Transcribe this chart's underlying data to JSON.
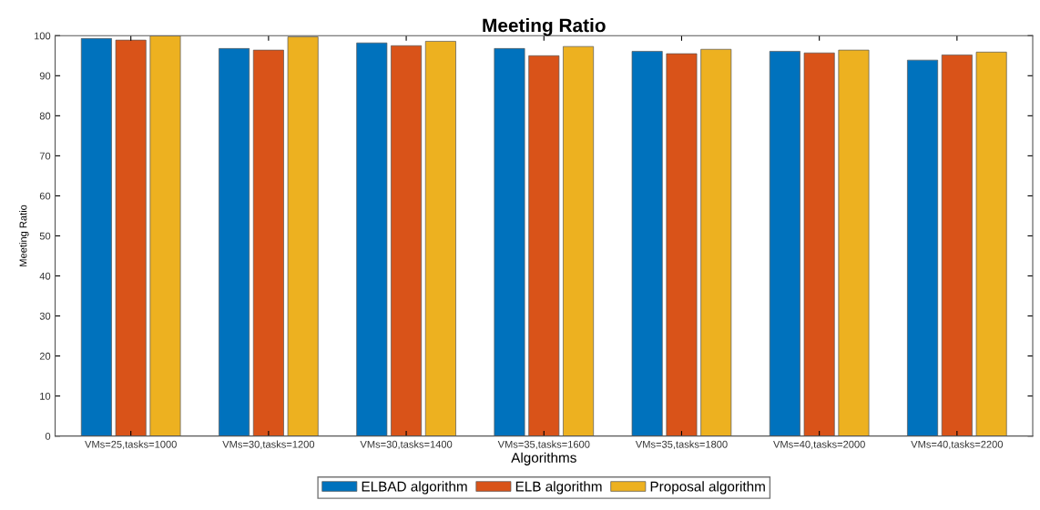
{
  "chart_data": {
    "type": "bar",
    "title": "Meeting Ratio",
    "xlabel": "Algorithms",
    "ylabel": "Meeting Ratio",
    "categories": [
      "VMs=25,tasks=1000",
      "VMs=30,tasks=1200",
      "VMs=30,tasks=1400",
      "VMs=35,tasks=1600",
      "VMs=35,tasks=1800",
      "VMs=40,tasks=2000",
      "VMs=40,tasks=2200"
    ],
    "series": [
      {
        "name": "ELBAD algorithm",
        "color": "#0072bd",
        "values": [
          99.3,
          96.8,
          98.2,
          96.8,
          96.1,
          96.1,
          93.9
        ]
      },
      {
        "name": "ELB algorithm",
        "color": "#d95319",
        "values": [
          98.9,
          96.4,
          97.5,
          95.0,
          95.5,
          95.7,
          95.2
        ]
      },
      {
        "name": "Proposal algorithm",
        "color": "#edb120",
        "values": [
          100,
          99.7,
          98.6,
          97.3,
          96.6,
          96.4,
          95.9
        ]
      }
    ],
    "ylim": [
      0,
      100
    ],
    "yticks": [
      0,
      10,
      20,
      30,
      40,
      50,
      60,
      70,
      80,
      90,
      100
    ],
    "grid": false,
    "legend": "bottom"
  }
}
